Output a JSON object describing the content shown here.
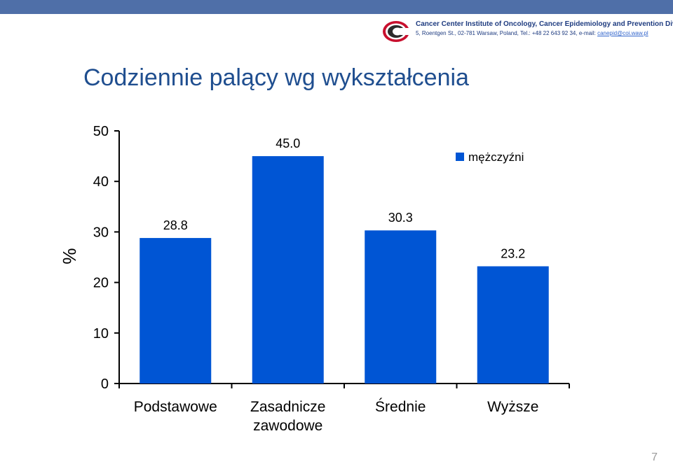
{
  "header": {
    "logo": {
      "line1": "Cancer Center Institute of Oncology, Cancer Epidemiology and Prevention Division",
      "line2_prefix": "5, Roentgen St., 02-781 Warsaw, Poland, Tel.: +48 22 643 92 34, e-mail: ",
      "email": "canepid@coi.waw.pl"
    }
  },
  "slide": {
    "title": "Codziennie palący wg wykształcenia",
    "page_number": "7"
  },
  "colors": {
    "bar": "#0055d4",
    "title": "#1f4e8f",
    "top_bar": "#4f6fa8"
  },
  "chart_data": {
    "type": "bar",
    "categories": [
      [
        "Podstawowe"
      ],
      [
        "Zasadnicze",
        "zawodowe"
      ],
      [
        "Średnie"
      ],
      [
        "Wyższe"
      ]
    ],
    "series": [
      {
        "name": "mężczyźni",
        "values": [
          28.8,
          45.0,
          30.3,
          23.2
        ]
      }
    ],
    "value_labels": [
      "28.8",
      "45.0",
      "30.3",
      "23.2"
    ],
    "ylabel": "%",
    "yticks": [
      0,
      10,
      20,
      30,
      40,
      50
    ],
    "ylim": [
      0,
      50
    ],
    "grid": false,
    "legend": "top-right"
  }
}
